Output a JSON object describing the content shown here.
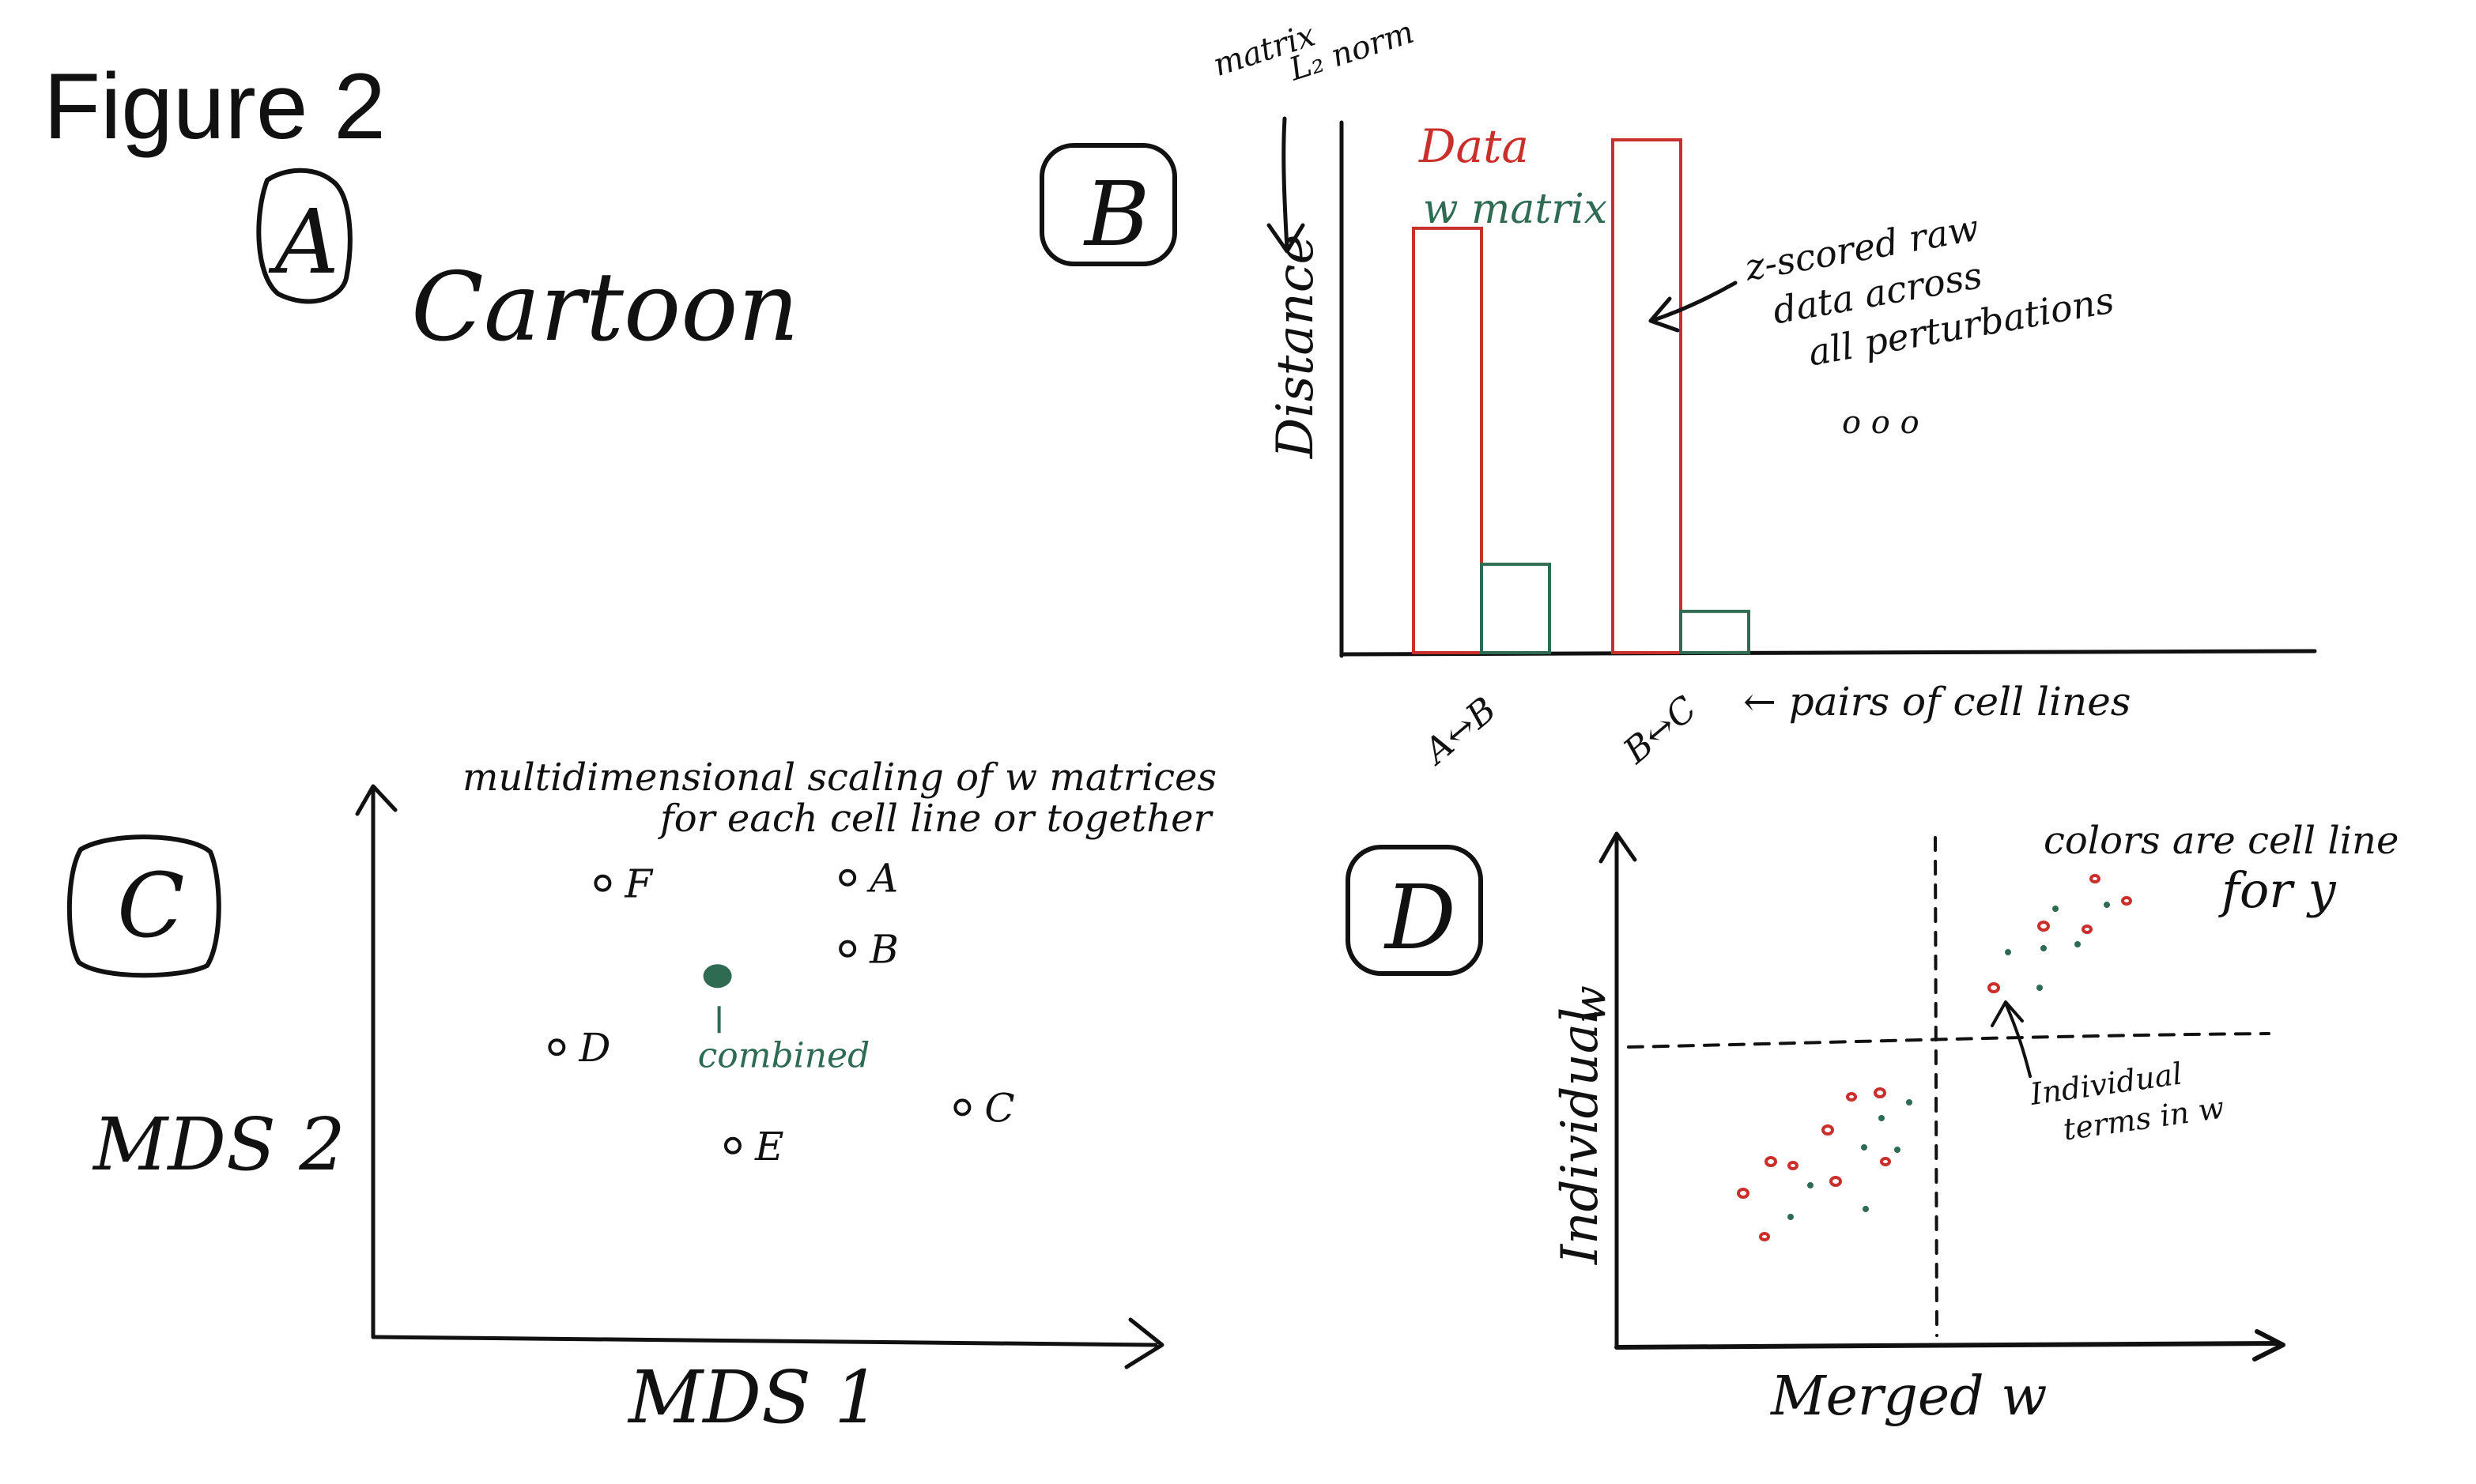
{
  "figure_title": "Figure 2",
  "panels": {
    "A": {
      "label": "A",
      "title": "Cartoon"
    },
    "B": {
      "label": "B",
      "y_axis": "Distance",
      "y_axis_note_line1": "matrix",
      "y_axis_note_line2": "L₂ norm",
      "x_axis_note": "← pairs of cell lines",
      "legend": [
        {
          "label": "Data",
          "color": "#c9302c"
        },
        {
          "label": "w matrix",
          "color": "#2e6b52"
        }
      ],
      "annotation_lines": [
        "z-scored raw",
        "data across",
        "all perturbations"
      ],
      "ellipsis": "o o o"
    },
    "C": {
      "label": "C",
      "title_line1": "multidimensional scaling of w matrices",
      "title_line2": "for each cell line or together",
      "x_axis": "MDS 1",
      "y_axis": "MDS 2",
      "combined_label": "combined"
    },
    "D": {
      "label": "D",
      "x_axis": "Merged w",
      "y_axis": "Individual",
      "y_value": "w",
      "note_line1": "colors are cell line",
      "note_line2": "for y",
      "callout_line1": "Individual",
      "callout_line2": "terms in w"
    }
  },
  "chart_data": [
    {
      "type": "bar",
      "categories": [
        "A↔B",
        "B↔C"
      ],
      "series": [
        {
          "name": "Data",
          "values": [
            0.72,
            0.87
          ]
        },
        {
          "name": "w matrix",
          "values": [
            0.15,
            0.07
          ]
        }
      ],
      "ylabel": "Distance",
      "ylim": [
        0,
        1
      ]
    },
    {
      "type": "scatter",
      "xlabel": "MDS 1",
      "ylabel": "MDS 2",
      "points": [
        {
          "label": "F",
          "x": 0.3,
          "y": 0.83
        },
        {
          "label": "A",
          "x": 0.62,
          "y": 0.84
        },
        {
          "label": "B",
          "x": 0.62,
          "y": 0.71
        },
        {
          "label": "D",
          "x": 0.24,
          "y": 0.53
        },
        {
          "label": "C",
          "x": 0.77,
          "y": 0.42
        },
        {
          "label": "E",
          "x": 0.47,
          "y": 0.35
        },
        {
          "label": "combined",
          "x": 0.45,
          "y": 0.66
        }
      ]
    }
  ]
}
